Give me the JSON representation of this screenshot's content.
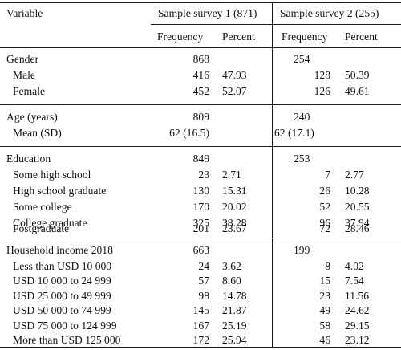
{
  "header": {
    "variable": "Variable",
    "survey1": "Sample survey 1 (871)",
    "survey2": "Sample survey 2 (255)",
    "frequency": "Frequency",
    "percent": "Percent"
  },
  "sections": [
    {
      "title": "Gender",
      "f1": "868",
      "p1": "",
      "f2": "254",
      "p2": "",
      "rows": [
        {
          "label": "Male",
          "f1": "416",
          "p1": "47.93",
          "f2": "128",
          "p2": "50.39"
        },
        {
          "label": "Female",
          "f1": "452",
          "p1": "52.07",
          "f2": "126",
          "p2": "49.61"
        }
      ]
    },
    {
      "title": "Age (years)",
      "f1": "809",
      "p1": "",
      "f2": "240",
      "p2": "",
      "rows": [
        {
          "label": "Mean (SD)",
          "f1": "62 (16.5)",
          "p1": "",
          "f2": "62 (17.1)",
          "p2": ""
        }
      ]
    },
    {
      "title": "Education",
      "f1": "849",
      "p1": "",
      "f2": "253",
      "p2": "",
      "rows": [
        {
          "label": "Some high school",
          "f1": "23",
          "p1": "2.71",
          "f2": "7",
          "p2": "2.77"
        },
        {
          "label": "High school graduate",
          "f1": "130",
          "p1": "15.31",
          "f2": "26",
          "p2": "10.28"
        },
        {
          "label": "Some college",
          "f1": "170",
          "p1": "20.02",
          "f2": "52",
          "p2": "20.55"
        },
        {
          "label": "College graduate",
          "f1": "325",
          "p1": "38.28",
          "f2": "96",
          "p2": "37.94"
        },
        {
          "label": "Postgraduate",
          "f1": "201",
          "p1": "23.67",
          "f2": "72",
          "p2": "28.46"
        }
      ]
    },
    {
      "title": "Household income 2018",
      "f1": "663",
      "p1": "",
      "f2": "199",
      "p2": "",
      "rows": [
        {
          "label": "Less than USD 10 000",
          "f1": "24",
          "p1": "3.62",
          "f2": "8",
          "p2": "4.02"
        },
        {
          "label": "USD 10 000 to 24 999",
          "f1": "57",
          "p1": "8.60",
          "f2": "15",
          "p2": "7.54"
        },
        {
          "label": "USD 25 000 to 49 999",
          "f1": "98",
          "p1": "14.78",
          "f2": "23",
          "p2": "11.56"
        },
        {
          "label": "USD 50 000 to 74 999",
          "f1": "145",
          "p1": "21.87",
          "f2": "49",
          "p2": "24.62"
        },
        {
          "label": "USD 75 000 to 124 999",
          "f1": "167",
          "p1": "25.19",
          "f2": "58",
          "p2": "29.15"
        },
        {
          "label": "More than USD 125 000",
          "f1": "172",
          "p1": "25.94",
          "f2": "46",
          "p2": "23.12"
        }
      ]
    }
  ]
}
